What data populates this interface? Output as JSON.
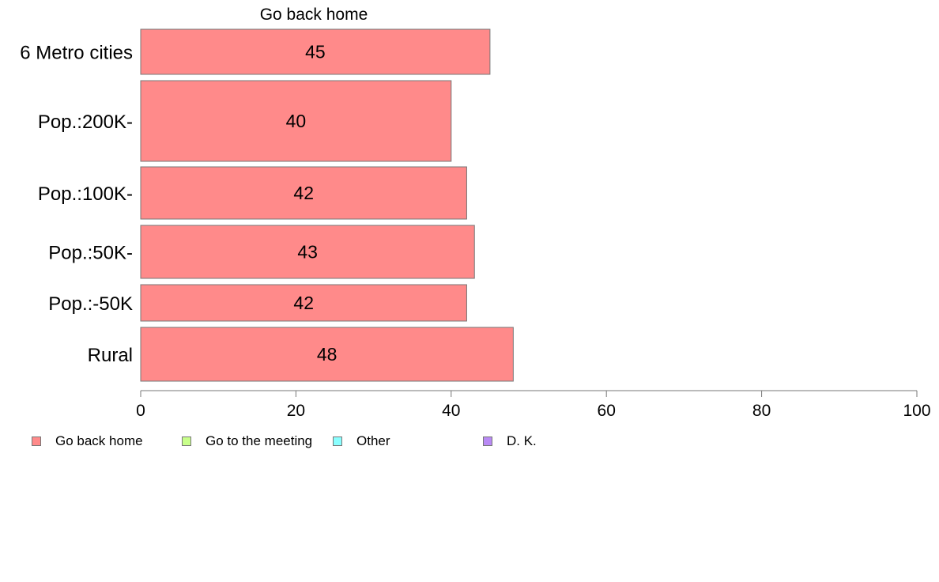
{
  "chart_data": {
    "type": "bar",
    "orientation": "horizontal",
    "title": "Go back home",
    "categories": [
      "6 Metro cities",
      "Pop.:200K-",
      "Pop.:100K-",
      "Pop.:50K-",
      "Pop.:-50K",
      "Rural"
    ],
    "series": [
      {
        "name": "Go back home",
        "values": [
          45,
          40,
          42,
          43,
          42,
          48
        ],
        "color": "#ff8a8a"
      }
    ],
    "xlim": [
      0,
      100
    ],
    "xticks": [
      0,
      20,
      40,
      60,
      80,
      100
    ],
    "xlabel": "",
    "ylabel": "",
    "grid": false,
    "legend_position": "bottom",
    "legend": [
      {
        "label": "Go back home",
        "color": "#ff8a8a"
      },
      {
        "label": "Go to the meeting",
        "color": "#c8ff8a"
      },
      {
        "label": "Other",
        "color": "#8affff"
      },
      {
        "label": "D. K.",
        "color": "#b98af5"
      }
    ]
  }
}
